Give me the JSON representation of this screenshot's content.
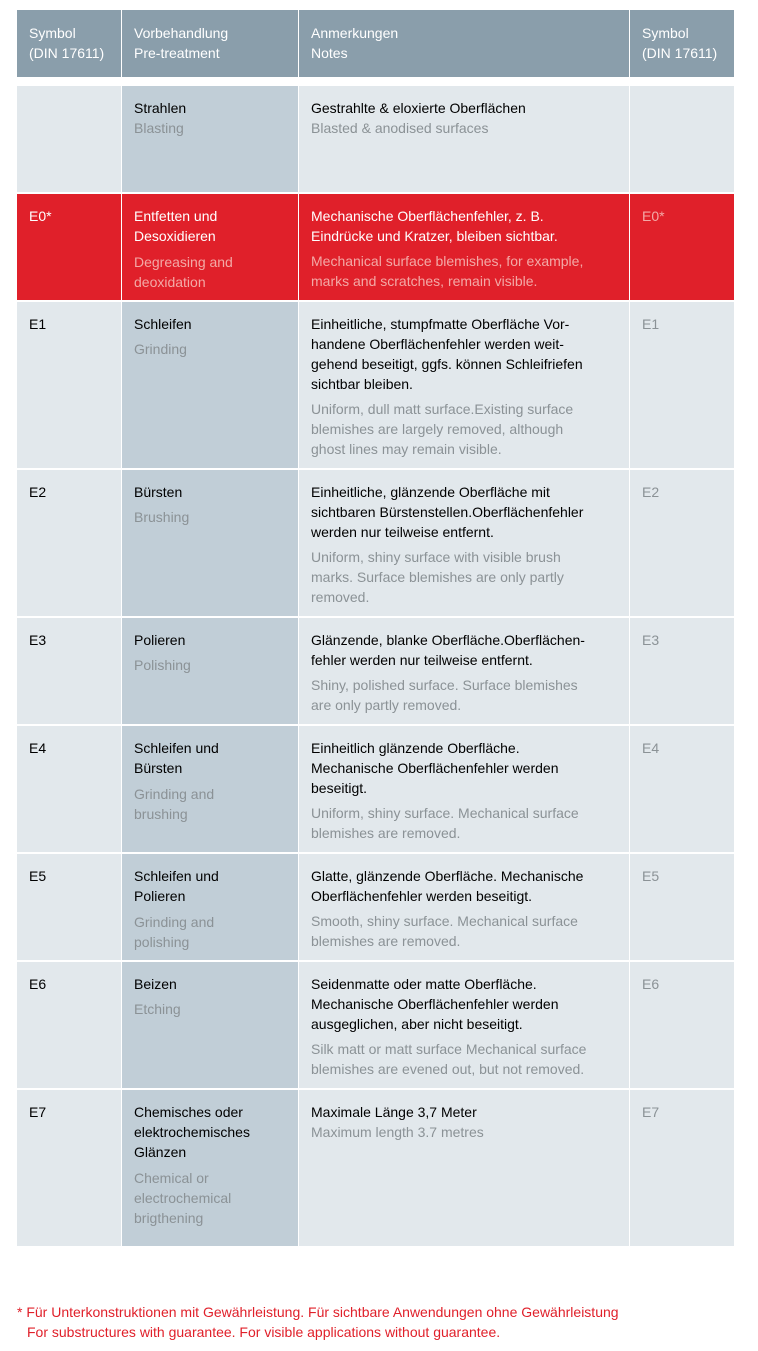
{
  "header": {
    "symbol": "Symbol\n(DIN 17611)",
    "pretreatment": "Vorbehandlung\nPre-treatment",
    "notes": "Anmerkungen\nNotes",
    "symbol_right": "Symbol\n(DIN 17611)"
  },
  "rows": [
    {
      "symbol": "",
      "pre_de": "Strahlen",
      "pre_en": "Blasting",
      "notes_de": "Gestrahlte & eloxierte Oberflächen",
      "notes_en": "Blasted & anodised surfaces",
      "symbol_right": ""
    },
    {
      "symbol": "E0*",
      "pre_de": "Entfetten und\nDesoxidieren",
      "pre_en": "Degreasing and\ndeoxidation",
      "notes_de": "Mechanische Oberflächenfehler, z. B.\nEindrücke und Kratzer, bleiben sichtbar.",
      "notes_en": "Mechanical surface blemishes, for example,\nmarks and scratches, remain visible.",
      "symbol_right": "E0*"
    },
    {
      "symbol": "E1",
      "pre_de": "Schleifen",
      "pre_en": "Grinding",
      "notes_de": "Einheitliche, stumpfmatte Oberfläche Vor-\nhandene Oberflächenfehler werden weit-\ngehend beseitigt, ggfs. können Schleifriefen\nsichtbar bleiben.",
      "notes_en": "Uniform, dull matt surface.Existing surface\nblemishes are largely removed, although\nghost lines may remain visible.",
      "symbol_right": "E1"
    },
    {
      "symbol": "E2",
      "pre_de": "Bürsten",
      "pre_en": "Brushing",
      "notes_de": "Einheitliche, glänzende Oberfläche mit\nsichtbaren Bürstenstellen.Oberflächenfehler\nwerden nur teilweise entfernt.",
      "notes_en": "Uniform, shiny surface with visible brush\nmarks. Surface blemishes are only partly\nremoved.",
      "symbol_right": "E2"
    },
    {
      "symbol": "E3",
      "pre_de": "Polieren",
      "pre_en": "Polishing",
      "notes_de": "Glänzende, blanke Oberfläche.Oberflächen-\nfehler werden nur teilweise entfernt.",
      "notes_en": "Shiny, polished surface. Surface blemishes\nare only partly removed.",
      "symbol_right": "E3"
    },
    {
      "symbol": "E4",
      "pre_de": "Schleifen und\nBürsten",
      "pre_en": "Grinding and\nbrushing",
      "notes_de": "Einheitlich glänzende Oberfläche.\nMechanische Oberflächenfehler werden\nbeseitigt.",
      "notes_en": "Uniform, shiny surface. Mechanical surface\nblemishes are removed.",
      "symbol_right": "E4"
    },
    {
      "symbol": "E5",
      "pre_de": "Schleifen und\nPolieren",
      "pre_en": "Grinding and\npolishing",
      "notes_de": "Glatte, glänzende Oberfläche. Mechanische\nOberflächenfehler werden beseitigt.",
      "notes_en": "Smooth, shiny surface. Mechanical surface\nblemishes are removed.",
      "symbol_right": "E5"
    },
    {
      "symbol": "E6",
      "pre_de": "Beizen",
      "pre_en": "Etching",
      "notes_de": "Seidenmatte oder matte Oberfläche.\nMechanische Oberflächenfehler werden\nausgeglichen, aber nicht beseitigt.",
      "notes_en": "Silk matt or matt surface Mechanical surface\nblemishes are evened out, but not removed.",
      "symbol_right": "E6"
    },
    {
      "symbol": "E7",
      "pre_de": "Chemisches oder\nelektrochemisches\nGlänzen",
      "pre_en": "Chemical or\nelectrochemical\nbrigthening",
      "notes_de": "Maximale Länge 3,7 Meter",
      "notes_en": "Maximum length 3.7 metres",
      "symbol_right": "E7"
    }
  ],
  "footnote": {
    "de": "* Für Unterkonstruktionen mit Gewährleistung. Für sichtbare Anwendungen ohne Gewährleistung",
    "en": "For substructures with guarantee. For visible applications without guarantee."
  },
  "colors": {
    "header_bg": "#8a9eab",
    "cell_bg": "#e2e8ec",
    "pretreatment_bg": "#c1ced7",
    "highlight_red": "#e0202a",
    "secondary_text": "#8b9296"
  }
}
